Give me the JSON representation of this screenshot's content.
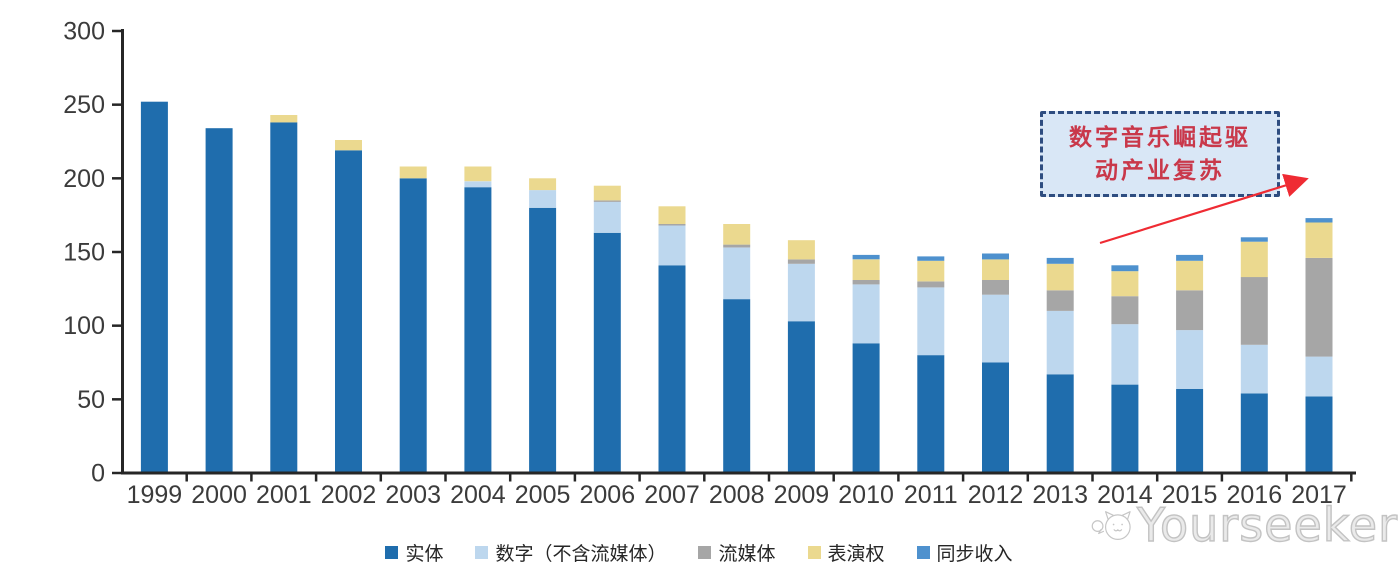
{
  "chart_data": {
    "type": "bar",
    "stacked": true,
    "title": "",
    "xlabel": "",
    "ylabel": "",
    "categories": [
      "1999",
      "2000",
      "2001",
      "2002",
      "2003",
      "2004",
      "2005",
      "2006",
      "2007",
      "2008",
      "2009",
      "2010",
      "2011",
      "2012",
      "2013",
      "2014",
      "2015",
      "2016",
      "2017"
    ],
    "series": [
      {
        "name": "实体",
        "color": "#1F6DAD",
        "values": [
          252,
          234,
          238,
          219,
          200,
          194,
          180,
          163,
          141,
          118,
          103,
          88,
          80,
          75,
          67,
          60,
          57,
          54,
          52
        ]
      },
      {
        "name": "数字（不含流媒体）",
        "color": "#BDD7EE",
        "values": [
          0,
          0,
          0,
          0,
          0,
          4,
          12,
          21,
          27,
          35,
          39,
          40,
          46,
          46,
          43,
          41,
          40,
          33,
          27
        ]
      },
      {
        "name": "流媒体",
        "color": "#A6A6A6",
        "values": [
          0,
          0,
          0,
          0,
          0,
          0,
          0,
          1,
          1,
          2,
          3,
          3,
          4,
          10,
          14,
          19,
          27,
          46,
          67
        ]
      },
      {
        "name": "表演权",
        "color": "#EBD98F",
        "values": [
          0,
          0,
          5,
          7,
          8,
          10,
          8,
          10,
          12,
          14,
          13,
          14,
          14,
          14,
          18,
          17,
          20,
          24,
          24
        ]
      },
      {
        "name": "同步收入",
        "color": "#4E91CE",
        "values": [
          0,
          0,
          0,
          0,
          0,
          0,
          0,
          0,
          0,
          0,
          0,
          3,
          3,
          4,
          4,
          4,
          4,
          3,
          3
        ]
      }
    ],
    "ylim": [
      0,
      300
    ],
    "yticks": [
      0,
      50,
      100,
      150,
      200,
      250,
      300
    ],
    "grid": false,
    "legend_position": "bottom"
  },
  "annotation": {
    "line1": "数字音乐崛起驱",
    "line2": "动产业复苏",
    "text_color": "#C9384A",
    "box_fill": "#D9E7F6",
    "box_border": "#2E4D80",
    "arrow_color": "#EF2B33"
  },
  "watermark": {
    "text": "Yourseeker",
    "logo": "cat-face-logo",
    "color": "#C3C3C3"
  },
  "axis": {
    "line_color": "#262626",
    "tick_label_color": "#3B3B3B"
  }
}
